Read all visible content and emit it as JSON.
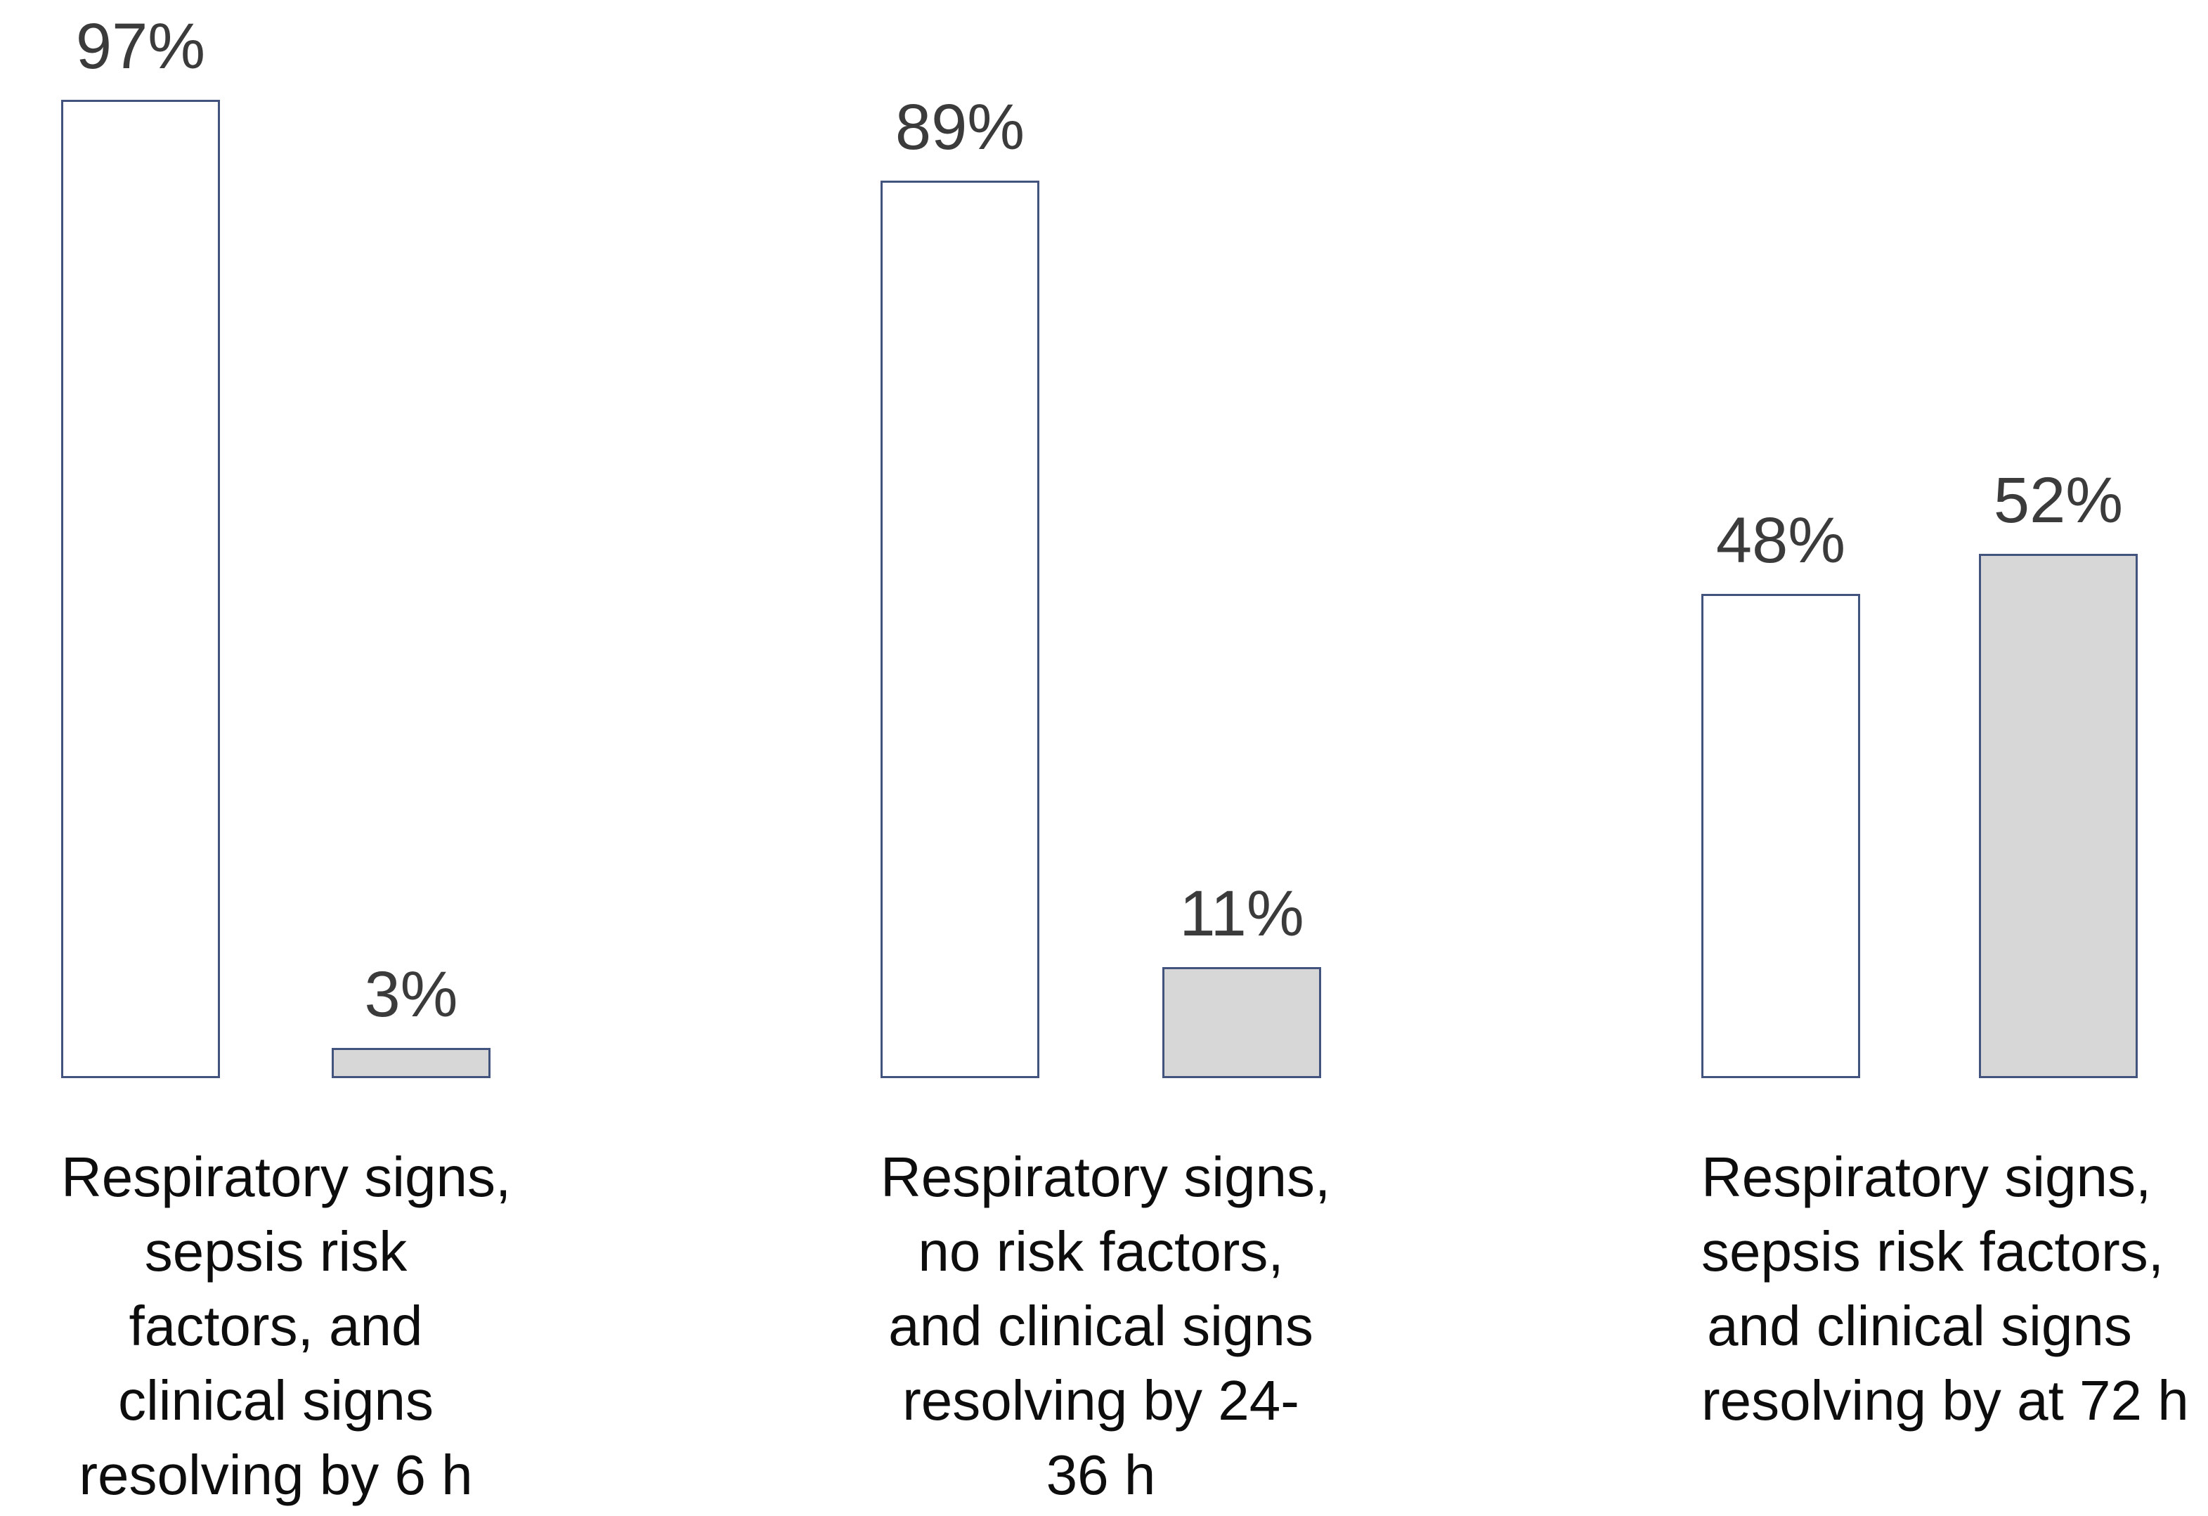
{
  "chart_data": {
    "type": "bar",
    "title": "",
    "value_unit": "percent",
    "ylim": [
      0,
      100
    ],
    "grid": false,
    "legend": "none",
    "axes_shown": false,
    "series": [
      {
        "name": "white-outlined",
        "values": [
          97,
          89,
          48
        ]
      },
      {
        "name": "gray-filled",
        "values": [
          3,
          11,
          52
        ]
      }
    ],
    "groups": [
      {
        "label_lines": [
          "Respiratory signs,",
          "sepsis risk",
          "factors, and",
          "clinical signs",
          "resolving by 6 h"
        ],
        "bars": [
          {
            "series": "white-outlined",
            "value": 97,
            "label": "97%"
          },
          {
            "series": "gray-filled",
            "value": 3,
            "label": "3%"
          }
        ]
      },
      {
        "label_lines": [
          "Respiratory signs,",
          "no risk factors,",
          "and clinical signs",
          "resolving by 24-",
          "36 h"
        ],
        "bars": [
          {
            "series": "white-outlined",
            "value": 89,
            "label": "89%"
          },
          {
            "series": "gray-filled",
            "value": 11,
            "label": "11%"
          }
        ]
      },
      {
        "label_lines": [
          "Respiratory signs,",
          "sepsis risk factors,",
          "and clinical signs",
          "resolving by at 72 h"
        ],
        "bars": [
          {
            "series": "white-outlined",
            "value": 48,
            "label": "48%"
          },
          {
            "series": "gray-filled",
            "value": 52,
            "label": "52%"
          }
        ]
      }
    ],
    "colors": {
      "bar_border": "#42547E",
      "white_fill": "#FFFFFF",
      "gray_fill": "#D7D7D7",
      "pct_text": "#3B3B3B",
      "label_text": "#0D0D0D",
      "background": "#FFFFFF"
    }
  }
}
